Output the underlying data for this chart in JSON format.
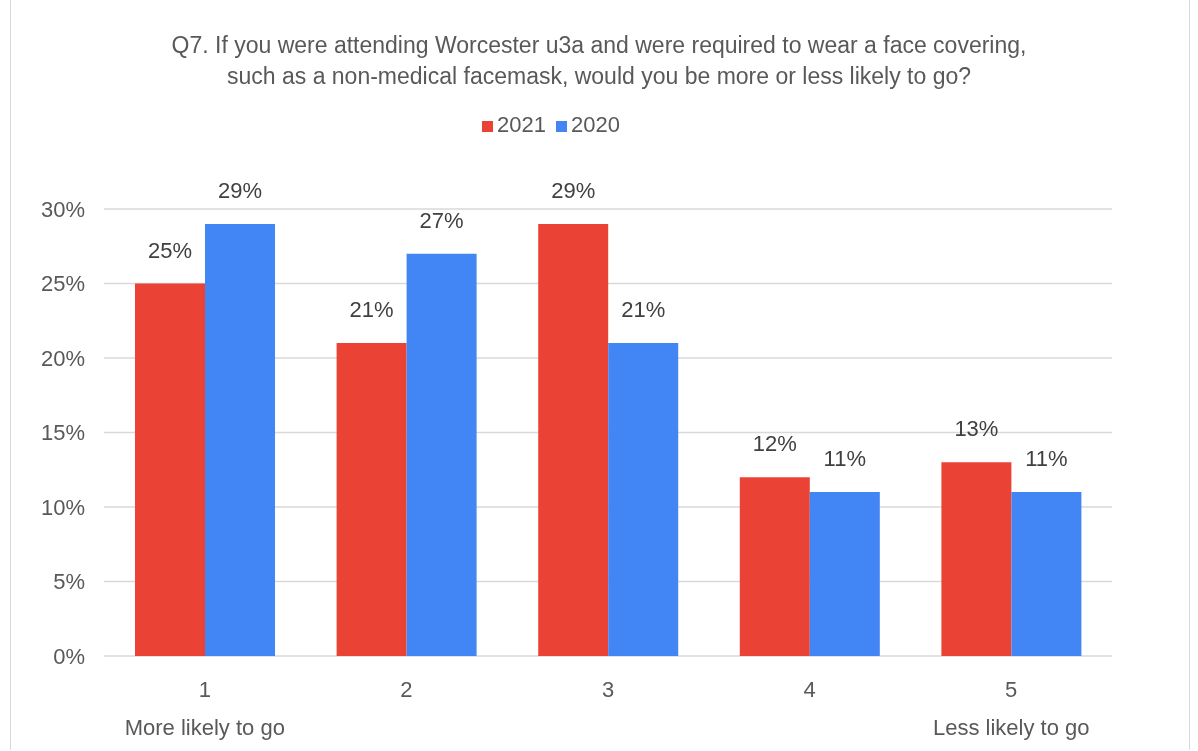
{
  "chart_data": {
    "type": "bar",
    "title": "Q7. If you were attending Worcester u3a and were required to wear a face covering, such as a non-medical facemask, would you be more or less likely to go?",
    "categories": [
      "1",
      "2",
      "3",
      "4",
      "5"
    ],
    "series": [
      {
        "name": "2021",
        "color": "#ea4335",
        "values": [
          25,
          21,
          29,
          12,
          13
        ],
        "value_labels": [
          "25%",
          "21%",
          "29%",
          "12%",
          "13%"
        ]
      },
      {
        "name": "2020",
        "color": "#4285f4",
        "values": [
          29,
          27,
          21,
          11,
          11
        ],
        "value_labels": [
          "29%",
          "27%",
          "21%",
          "11%",
          "11%"
        ]
      }
    ],
    "ylim": [
      0,
      30
    ],
    "yticks": [
      {
        "value": 0,
        "label": "0%"
      },
      {
        "value": 5,
        "label": "5%"
      },
      {
        "value": 10,
        "label": "10%"
      },
      {
        "value": 15,
        "label": "15%"
      },
      {
        "value": 20,
        "label": "20%"
      },
      {
        "value": 25,
        "label": "25%"
      },
      {
        "value": 30,
        "label": "30%"
      }
    ],
    "grid": "y",
    "legend": "top",
    "annotations": [
      "More likely to go",
      "Less likely to go"
    ]
  }
}
